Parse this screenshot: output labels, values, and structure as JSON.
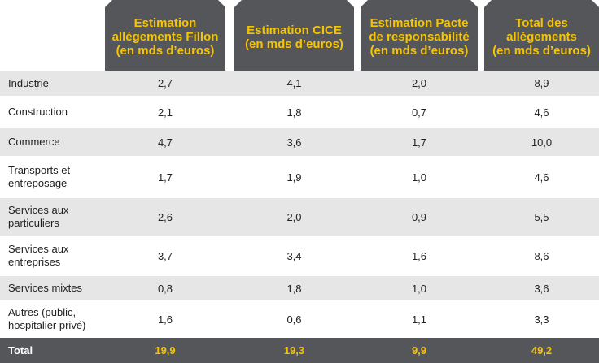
{
  "columns": [
    "Estimation\nallégements Fillon\n(en mds d’euros)",
    "Estimation CICE\n(en mds d’euros)",
    "Estimation Pacte\nde responsabilité\n(en mds d’euros)",
    "Total des\nallégements\n(en mds d’euros)"
  ],
  "rows": [
    {
      "label": "Industrie",
      "values": [
        "2,7",
        "4,1",
        "2,0",
        "8,9"
      ]
    },
    {
      "label": "Construction",
      "values": [
        "2,1",
        "1,8",
        "0,7",
        "4,6"
      ]
    },
    {
      "label": "Commerce",
      "values": [
        "4,7",
        "3,6",
        "1,7",
        "10,0"
      ]
    },
    {
      "label": "Transports et\nentreposage",
      "values": [
        "1,7",
        "1,9",
        "1,0",
        "4,6"
      ]
    },
    {
      "label": "Services aux\nparticuliers",
      "values": [
        "2,6",
        "2,0",
        "0,9",
        "5,5"
      ]
    },
    {
      "label": "Services aux\nentreprises",
      "values": [
        "3,7",
        "3,4",
        "1,6",
        "8,6"
      ]
    },
    {
      "label": "Services mixtes",
      "values": [
        "0,8",
        "1,8",
        "1,0",
        "3,6"
      ]
    },
    {
      "label": "Autres (public,\nhospitalier privé)",
      "values": [
        "1,6",
        "0,6",
        "1,1",
        "3,3"
      ]
    }
  ],
  "total": {
    "label": "Total",
    "values": [
      "19,9",
      "19,3",
      "9,9",
      "49,2"
    ]
  },
  "colors": {
    "header_bg": "#55565a",
    "header_text": "#f6c500",
    "stripe": "#e6e6e6",
    "total_bg": "#55565a"
  }
}
